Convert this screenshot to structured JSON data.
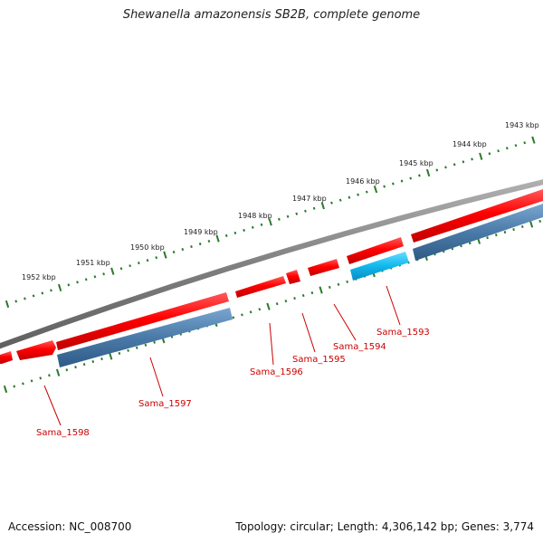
{
  "title": "Shewanella amazonensis SB2B, complete genome",
  "footer": {
    "accession": "Accession: NC_008700",
    "summary": "Topology: circular; Length: 4,306,142 bp; Genes: 3,774"
  },
  "colors": {
    "backbone": "#808080",
    "forward_gene": "#ff0000",
    "reverse_gene": "#4a7aa8",
    "reverse_gene_highlight": "#11b8ee",
    "tick": "#2a7a2a",
    "gene_label": "#cc0000"
  },
  "axis": {
    "unit": "kbp",
    "ticks": [
      {
        "kbp": 1943,
        "label": "1943 kbp"
      },
      {
        "kbp": 1944,
        "label": "1944 kbp"
      },
      {
        "kbp": 1945,
        "label": "1945 kbp"
      },
      {
        "kbp": 1946,
        "label": "1946 kbp"
      },
      {
        "kbp": 1947,
        "label": "1947 kbp"
      },
      {
        "kbp": 1948,
        "label": "1948 kbp"
      },
      {
        "kbp": 1949,
        "label": "1949 kbp"
      },
      {
        "kbp": 1950,
        "label": "1950 kbp"
      },
      {
        "kbp": 1951,
        "label": "1951 kbp"
      },
      {
        "kbp": 1952,
        "label": "1952 kbp"
      }
    ]
  },
  "genes": [
    {
      "name": "Sama_1593",
      "strand": "reverse",
      "highlight": true
    },
    {
      "name": "Sama_1594",
      "strand": "forward"
    },
    {
      "name": "Sama_1595",
      "strand": "forward"
    },
    {
      "name": "Sama_1596",
      "strand": "forward"
    },
    {
      "name": "Sama_1597",
      "strand": "reverse"
    },
    {
      "name": "Sama_1598",
      "strand": "forward"
    }
  ]
}
